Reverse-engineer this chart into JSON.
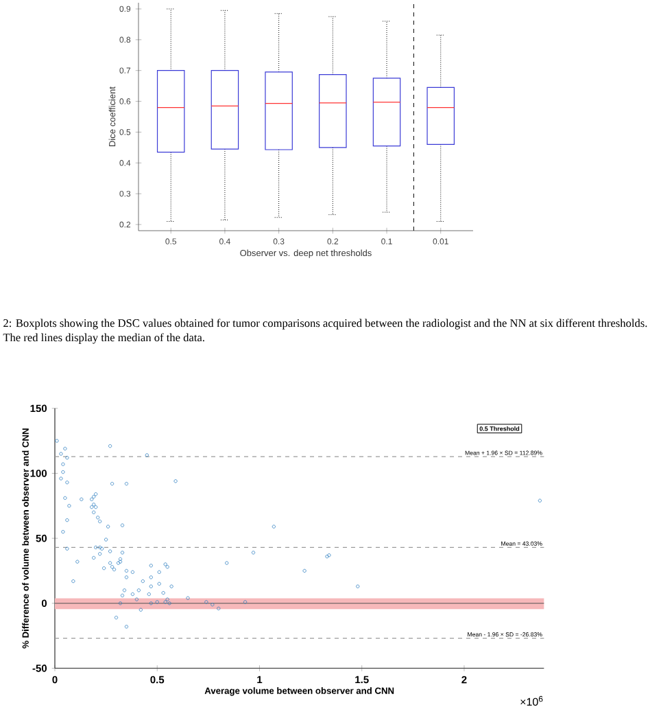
{
  "chart_data": [
    {
      "type": "box",
      "ylabel": "Dice coefficient",
      "xlabel": "Observer vs. deep net thresholds",
      "categories": [
        "0.5",
        "0.4",
        "0.3",
        "0.2",
        "0.1",
        "0.01"
      ],
      "ylim": [
        0.18,
        0.92
      ],
      "yticks": [
        0.2,
        0.3,
        0.4,
        0.5,
        0.6,
        0.7,
        0.8,
        0.9
      ],
      "series": [
        {
          "color": "#3b3bd6",
          "boxes": [
            {
              "low": 0.21,
              "q1": 0.435,
              "median": 0.58,
              "q3": 0.7,
              "high": 0.9
            },
            {
              "low": 0.215,
              "q1": 0.445,
              "median": 0.585,
              "q3": 0.7,
              "high": 0.895
            },
            {
              "low": 0.223,
              "q1": 0.443,
              "median": 0.593,
              "q3": 0.695,
              "high": 0.885
            },
            {
              "low": 0.232,
              "q1": 0.45,
              "median": 0.595,
              "q3": 0.687,
              "high": 0.875
            },
            {
              "low": 0.24,
              "q1": 0.455,
              "median": 0.597,
              "q3": 0.675,
              "high": 0.86
            },
            {
              "low": 0.21,
              "q1": 0.46,
              "median": 0.58,
              "q3": 0.645,
              "high": 0.815
            }
          ]
        }
      ],
      "annotations": [
        "2: Boxplots showing the DSC values obtained for tumor comparisons acquired between the radiologist and the NN at six different thresholds. The red lines display the median of the data."
      ]
    },
    {
      "type": "scatter",
      "xlabel": "Average volume between observer and CNN",
      "ylabel": "% Difference of volume between observer and CNN",
      "xlim": [
        0,
        2.39
      ],
      "ylim": [
        -50,
        150
      ],
      "xticks": [
        0,
        0.5,
        1,
        1.5,
        2
      ],
      "yticks": [
        -50,
        0,
        50,
        100,
        150
      ],
      "marker": "circle",
      "color": "#2e7fc0",
      "x": [
        0.01,
        0.05,
        0.27,
        0.03,
        0.06,
        0.04,
        0.04,
        0.03,
        0.06,
        0.05,
        0.07,
        0.06,
        0.04,
        0.06,
        0.09,
        0.11,
        0.13,
        0.18,
        0.19,
        0.2,
        0.19,
        0.2,
        0.18,
        0.19,
        0.21,
        0.22,
        0.26,
        0.25,
        0.2,
        0.22,
        0.23,
        0.19,
        0.22,
        0.24,
        0.27,
        0.27,
        0.28,
        0.29,
        0.31,
        0.32,
        0.32,
        0.33,
        0.28,
        0.35,
        0.33,
        0.35,
        0.38,
        0.35,
        0.34,
        0.33,
        0.3,
        0.35,
        0.32,
        0.4,
        0.38,
        0.41,
        0.43,
        0.42,
        0.45,
        0.46,
        0.47,
        0.47,
        0.47,
        0.47,
        0.5,
        0.51,
        0.51,
        0.53,
        0.54,
        0.55,
        0.55,
        0.56,
        0.57,
        0.54,
        0.59,
        0.65,
        0.74,
        0.77,
        0.8,
        0.84,
        0.93,
        0.97,
        1.07,
        1.22,
        1.33,
        1.34,
        1.48,
        2.37
      ],
      "values": [
        125,
        119,
        121,
        115,
        112,
        107,
        101,
        96,
        93,
        81,
        75,
        64,
        55,
        42,
        17,
        32,
        80,
        80,
        82,
        84,
        76,
        74,
        74,
        70,
        66,
        63,
        59,
        49,
        43,
        43,
        42,
        35,
        38,
        27,
        40,
        31,
        28,
        26,
        31,
        32,
        34,
        39,
        92,
        92,
        60,
        25,
        24,
        20,
        10,
        6,
        -11,
        -18,
        0,
        3,
        7,
        10,
        17,
        -5,
        114,
        7,
        13,
        20,
        29,
        0,
        1,
        15,
        24,
        8,
        30,
        28,
        3,
        0,
        13,
        1,
        94,
        4,
        1,
        -1,
        -4,
        31,
        1,
        39,
        59,
        25,
        36,
        37,
        13,
        79
      ],
      "bands": [
        {
          "axis": "y",
          "from": -4.5,
          "to": 3.8,
          "color": "#f6b8ba"
        }
      ],
      "ref_lines": [
        {
          "axis": "y",
          "value": 0,
          "color": "#555555",
          "line_style": "solid"
        },
        {
          "axis": "y",
          "value": 112.89,
          "label": "Mean + 1.96 × SD = 112.89%",
          "color": "#9a9a9a",
          "line_style": "dashed"
        },
        {
          "axis": "y",
          "value": 43.03,
          "label": "Mean = 43.03%",
          "color": "#9a9a9a",
          "line_style": "dashed"
        },
        {
          "axis": "y",
          "value": -26.83,
          "label": "Mean - 1.96 × SD = -26.83%",
          "color": "#9a9a9a",
          "line_style": "dashed"
        }
      ],
      "annotations": [
        "0.5 Threshold",
        "×10$^{6}$"
      ]
    }
  ]
}
